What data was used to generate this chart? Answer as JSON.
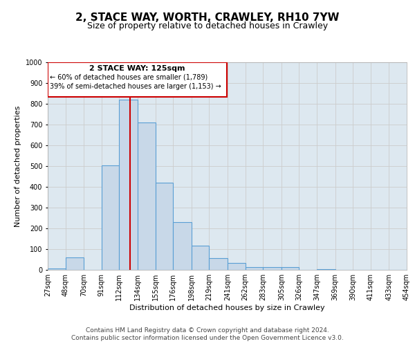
{
  "title": "2, STACE WAY, WORTH, CRAWLEY, RH10 7YW",
  "subtitle": "Size of property relative to detached houses in Crawley",
  "xlabel": "Distribution of detached houses by size in Crawley",
  "ylabel": "Number of detached properties",
  "bin_labels": [
    "27sqm",
    "48sqm",
    "70sqm",
    "91sqm",
    "112sqm",
    "134sqm",
    "155sqm",
    "176sqm",
    "198sqm",
    "219sqm",
    "241sqm",
    "262sqm",
    "283sqm",
    "305sqm",
    "326sqm",
    "347sqm",
    "369sqm",
    "390sqm",
    "411sqm",
    "433sqm",
    "454sqm"
  ],
  "bin_edges": [
    27,
    48,
    70,
    91,
    112,
    134,
    155,
    176,
    198,
    219,
    241,
    262,
    283,
    305,
    326,
    347,
    369,
    390,
    411,
    433,
    454
  ],
  "bar_heights": [
    8,
    60,
    0,
    505,
    820,
    710,
    420,
    230,
    118,
    57,
    33,
    12,
    12,
    12,
    0,
    5,
    0,
    0,
    0,
    0,
    0
  ],
  "bar_color": "#c8d8e8",
  "bar_edge_color": "#5a9fd4",
  "bar_edge_width": 0.8,
  "red_line_x": 125,
  "red_line_color": "#cc0000",
  "ylim": [
    0,
    1000
  ],
  "yticks": [
    0,
    100,
    200,
    300,
    400,
    500,
    600,
    700,
    800,
    900,
    1000
  ],
  "grid_color": "#cccccc",
  "plot_bg_color": "#dde8f0",
  "annotation_box_title": "2 STACE WAY: 125sqm",
  "annotation_line1": "← 60% of detached houses are smaller (1,789)",
  "annotation_line2": "39% of semi-detached houses are larger (1,153) →",
  "annotation_box_color": "#ffffff",
  "annotation_border_color": "#cc0000",
  "footer_line1": "Contains HM Land Registry data © Crown copyright and database right 2024.",
  "footer_line2": "Contains public sector information licensed under the Open Government Licence v3.0.",
  "title_fontsize": 11,
  "subtitle_fontsize": 9,
  "axis_label_fontsize": 8,
  "tick_fontsize": 7,
  "annotation_title_fontsize": 8,
  "annotation_text_fontsize": 7,
  "footer_fontsize": 6.5
}
